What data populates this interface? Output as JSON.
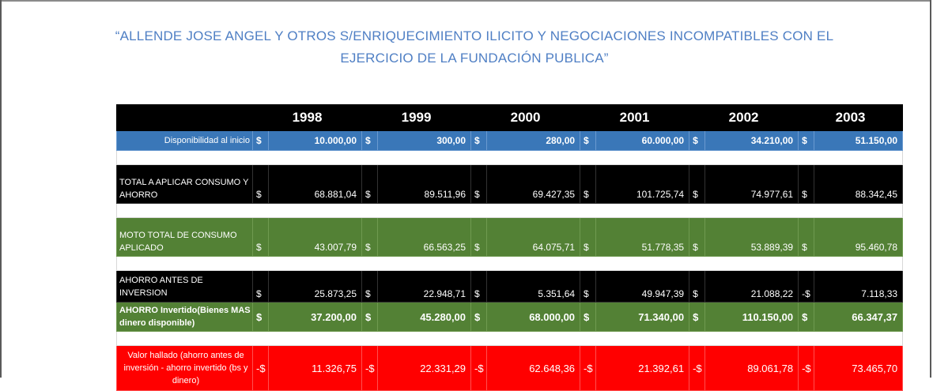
{
  "title_line1": "“ALLENDE JOSE ANGEL Y OTROS S/ENRIQUECIMIENTO ILICITO Y NEGOCIACIONES INCOMPATIBLES CON EL",
  "title_line2": "EJERCICIO DE LA FUNDACIÓN PUBLICA”",
  "years": [
    "1998",
    "1999",
    "2000",
    "2001",
    "2002",
    "2003"
  ],
  "rows": {
    "disponibilidad": {
      "label": "Disponibilidad al inicio",
      "signs": [
        "$",
        "$",
        "$",
        "$",
        "$",
        "$"
      ],
      "values": [
        "10.000,00",
        "300,00",
        "280,00",
        "60.000,00",
        "34.210,00",
        "51.150,00"
      ]
    },
    "total_aplicar": {
      "label": "TOTAL A APLICAR CONSUMO Y AHORRO",
      "signs": [
        "$",
        "$",
        "$",
        "$",
        "$",
        "$"
      ],
      "values": [
        "68.881,04",
        "89.511,96",
        "69.427,35",
        "101.725,74",
        "74.977,61",
        "88.342,45"
      ]
    },
    "consumo": {
      "label": "MOTO TOTAL DE CONSUMO APLICADO",
      "signs": [
        "$",
        "$",
        "$",
        "$",
        "$",
        "$"
      ],
      "values": [
        "43.007,79",
        "66.563,25",
        "64.075,71",
        "51.778,35",
        "53.889,39",
        "95.460,78"
      ]
    },
    "ahorro_antes": {
      "label": "AHORRO ANTES DE INVERSION",
      "signs": [
        "$",
        "$",
        "$",
        "$",
        "$",
        "-$"
      ],
      "values": [
        "25.873,25",
        "22.948,71",
        "5.351,64",
        "49.947,39",
        "21.088,22",
        "7.118,33"
      ]
    },
    "ahorro_invertido": {
      "label": "AHORRO Invertido(Bienes MAS dinero disponible)",
      "signs": [
        "$",
        "$",
        "$",
        "$",
        "$",
        "$"
      ],
      "values": [
        "37.200,00",
        "45.280,00",
        "68.000,00",
        "71.340,00",
        "110.150,00",
        "66.347,37"
      ]
    },
    "valor_hallado": {
      "label": "Valor hallado (ahorro antes de inversión - ahorro invertido (bs y dinero)",
      "signs": [
        "-$",
        "-$",
        "-$",
        "-$",
        "-$",
        "-$"
      ],
      "values": [
        "11.326,75",
        "22.331,29",
        "62.648,36",
        "21.392,61",
        "89.061,78",
        "73.465,70"
      ]
    }
  }
}
